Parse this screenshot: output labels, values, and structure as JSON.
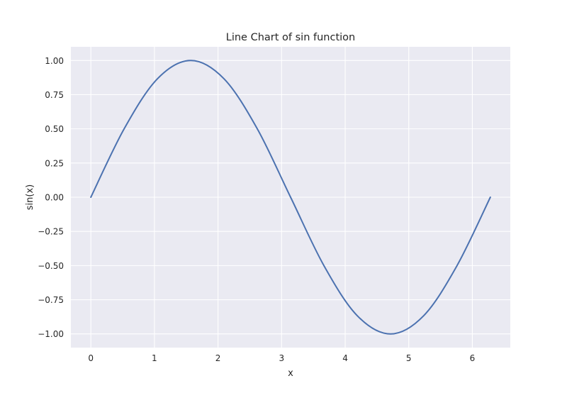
{
  "chart_data": {
    "type": "line",
    "title": "Line Chart of sin function",
    "xlabel": "x",
    "ylabel": "sin(x)",
    "xlim": [
      -0.314,
      6.597
    ],
    "ylim": [
      -1.1,
      1.1
    ],
    "x_ticks": [
      0,
      1,
      2,
      3,
      4,
      5,
      6
    ],
    "x_tick_labels": [
      "0",
      "1",
      "2",
      "3",
      "4",
      "5",
      "6"
    ],
    "y_ticks": [
      -1.0,
      -0.75,
      -0.5,
      -0.25,
      0.0,
      0.25,
      0.5,
      0.75,
      1.0
    ],
    "y_tick_labels": [
      "−1.00",
      "−0.75",
      "−0.50",
      "−0.25",
      "0.00",
      "0.25",
      "0.50",
      "0.75",
      "1.00"
    ],
    "grid": true,
    "series": [
      {
        "color": "#4c72b0",
        "x": [
          0,
          0.5236,
          1.0472,
          1.5708,
          2.0944,
          2.618,
          3.1416,
          3.6652,
          4.1888,
          4.7124,
          5.236,
          5.7596,
          6.2832
        ],
        "values": [
          0,
          0.5,
          0.866,
          1.0,
          0.866,
          0.5,
          0,
          -0.5,
          -0.866,
          -1.0,
          -0.866,
          -0.5,
          0
        ]
      }
    ],
    "colors": {
      "plot_background": "#eaeaf2",
      "grid": "#ffffff",
      "line": "#4c72b0"
    }
  }
}
